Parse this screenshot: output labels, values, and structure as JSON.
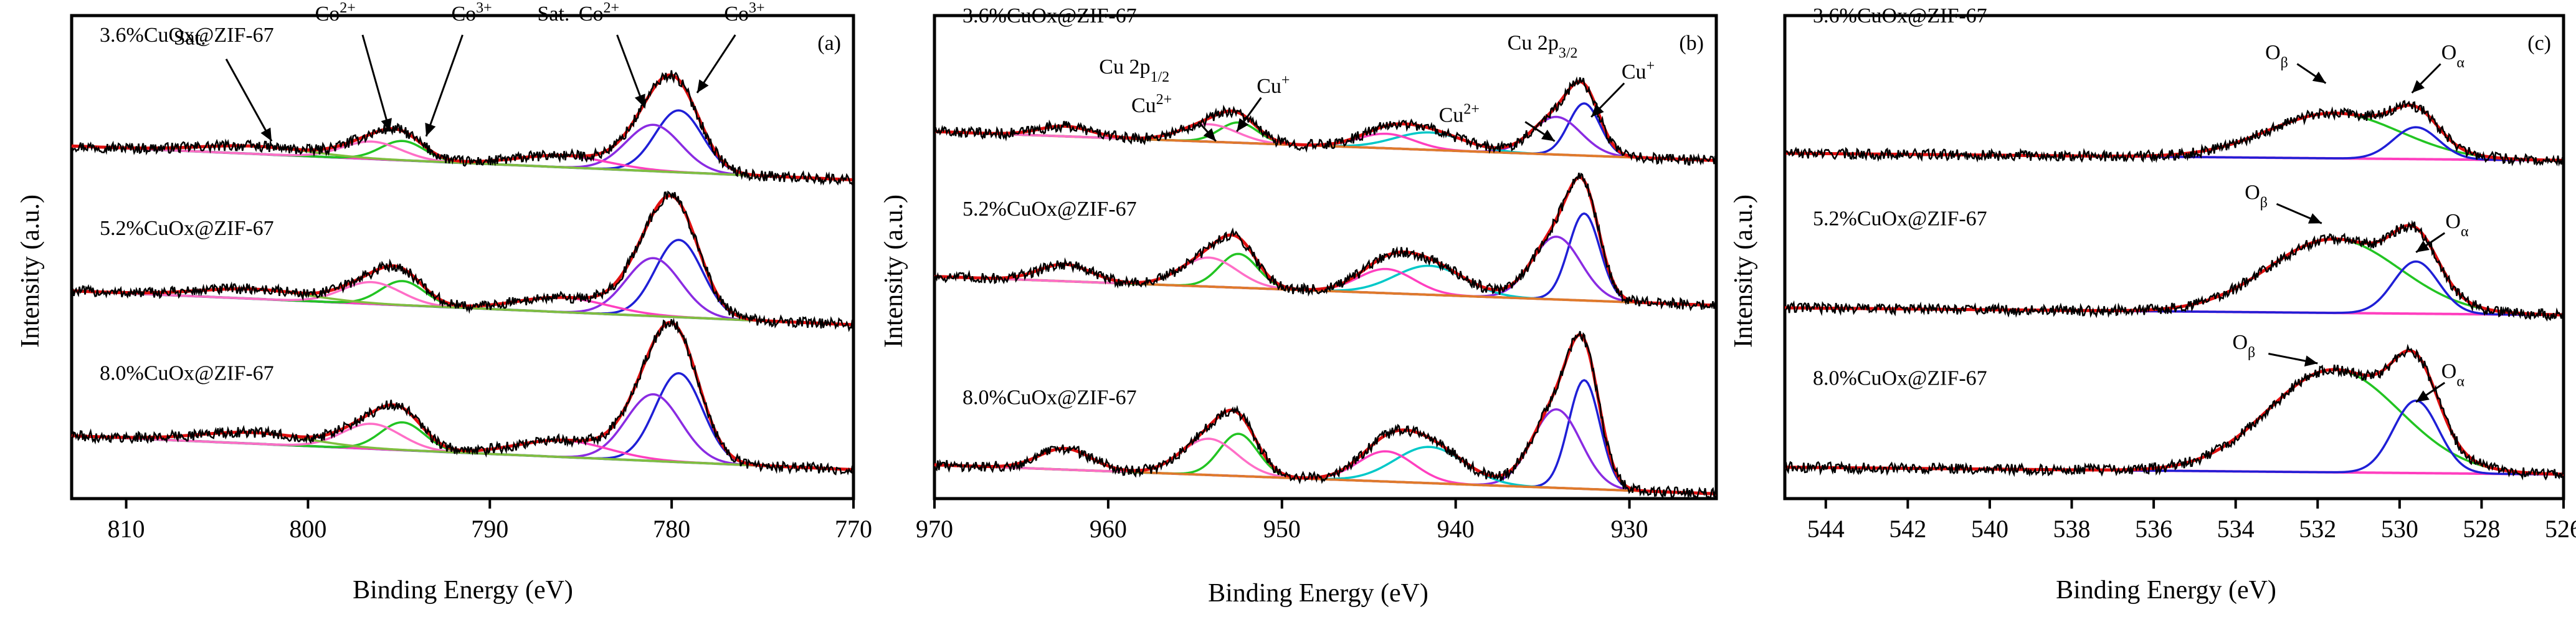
{
  "figure": {
    "description_panels": [
      "a",
      "b",
      "c"
    ]
  },
  "chart_data": [
    {
      "type": "line",
      "panel_label": "(a)",
      "title": "",
      "xlabel": "Binding Energy (eV)",
      "ylabel": "Intensity (a.u.)",
      "xlim": [
        813,
        770
      ],
      "ylim": [
        0,
        1
      ],
      "xticks": [
        "810",
        "800",
        "790",
        "780",
        "770"
      ],
      "xtick_values": [
        810,
        800,
        790,
        780,
        770
      ],
      "samples": [
        {
          "name": "3.6%CuOx@ZIF-67",
          "offset": 0.66,
          "scale": 0.8
        },
        {
          "name": "5.2%CuOx@ZIF-67",
          "offset": 0.36,
          "scale": 1.0
        },
        {
          "name": "8.0%CuOx@ZIF-67",
          "offset": 0.06,
          "scale": 1.15
        }
      ],
      "peaks": [
        {
          "center": 779.6,
          "width": 1.3,
          "height": 0.16,
          "color": "#1f1fd6",
          "label": "Co3+"
        },
        {
          "center": 781.0,
          "width": 1.5,
          "height": 0.12,
          "color": "#8a2be2",
          "label": "Co2+"
        },
        {
          "center": 786.0,
          "width": 2.5,
          "height": 0.03,
          "color": "#ff3fbf",
          "label": "Sat."
        },
        {
          "center": 794.8,
          "width": 1.2,
          "height": 0.05,
          "color": "#22c422",
          "label": "Co3+"
        },
        {
          "center": 796.5,
          "width": 1.6,
          "height": 0.045,
          "color": "#ff6ec7",
          "label": "Co2+"
        },
        {
          "center": 803.0,
          "width": 3.0,
          "height": 0.02,
          "color": "#7fbf3f",
          "label": "Sat."
        }
      ],
      "background": {
        "color": "#2f8f8f",
        "left_level": 0.07,
        "right_level": 0.0
      },
      "annotations": [
        {
          "text": "Sat.",
          "sup": "",
          "sub": "",
          "x": 806.5,
          "y": 0.94
        },
        {
          "text": "Co",
          "sup": "2+",
          "sub": "",
          "x": 798.5,
          "y": 0.99
        },
        {
          "text": "Co",
          "sup": "3+",
          "sub": "",
          "x": 791.0,
          "y": 0.99
        },
        {
          "text": "Sat.",
          "sup": "",
          "sub": "",
          "x": 786.5,
          "y": 0.99
        },
        {
          "text": "Co",
          "sup": "2+",
          "sub": "",
          "x": 784.0,
          "y": 0.99
        },
        {
          "text": "Co",
          "sup": "3+",
          "sub": "",
          "x": 776.0,
          "y": 0.99
        }
      ],
      "arrows": [
        {
          "from": [
            804.5,
            0.91
          ],
          "to": [
            802.0,
            0.74
          ]
        },
        {
          "from": [
            797.0,
            0.96
          ],
          "to": [
            795.5,
            0.76
          ]
        },
        {
          "from": [
            791.5,
            0.96
          ],
          "to": [
            793.5,
            0.75
          ]
        },
        {
          "from": [
            783.0,
            0.96
          ],
          "to": [
            781.5,
            0.81
          ]
        },
        {
          "from": [
            776.5,
            0.96
          ],
          "to": [
            778.6,
            0.84
          ]
        }
      ]
    },
    {
      "type": "line",
      "panel_label": "(b)",
      "title": "",
      "xlabel": "Binding Energy (eV)",
      "ylabel": "Intensity (a.u.)",
      "xlim": [
        970,
        925
      ],
      "ylim": [
        0,
        1
      ],
      "xticks": [
        "970",
        "960",
        "950",
        "940",
        "930"
      ],
      "xtick_values": [
        970,
        960,
        950,
        940,
        930
      ],
      "samples": [
        {
          "name": "3.6%CuOx@ZIF-67",
          "offset": 0.7,
          "scale": 0.6
        },
        {
          "name": "5.2%CuOx@ZIF-67",
          "offset": 0.4,
          "scale": 1.0
        },
        {
          "name": "8.0%CuOx@ZIF-67",
          "offset": 0.01,
          "scale": 1.25
        }
      ],
      "peaks": [
        {
          "center": 932.6,
          "width": 0.9,
          "height": 0.18,
          "color": "#1f1fd6",
          "label": "Cu+"
        },
        {
          "center": 934.2,
          "width": 1.4,
          "height": 0.13,
          "color": "#8a2be2",
          "label": "Cu2+"
        },
        {
          "center": 941.5,
          "width": 2.0,
          "height": 0.06,
          "color": "#00c8c8",
          "label": "Sat."
        },
        {
          "center": 944.0,
          "width": 1.6,
          "height": 0.05,
          "color": "#ff3fbf",
          "label": "Sat."
        },
        {
          "center": 952.5,
          "width": 1.1,
          "height": 0.07,
          "color": "#22c422",
          "label": "Cu+"
        },
        {
          "center": 954.2,
          "width": 1.6,
          "height": 0.06,
          "color": "#ff6ec7",
          "label": "Cu2+"
        },
        {
          "center": 962.5,
          "width": 1.5,
          "height": 0.035,
          "color": "#e07a2a",
          "label": "Sat."
        }
      ],
      "background": {
        "color": "#ff7f2a",
        "left_level": 0.06,
        "right_level": 0.0
      },
      "annotations": [
        {
          "text": "Cu 2p",
          "sup": "",
          "sub": "1/2",
          "x": 958.5,
          "y": 0.88
        },
        {
          "text": "Cu",
          "sup": "2+",
          "sub": "",
          "x": 957.5,
          "y": 0.8
        },
        {
          "text": "Cu",
          "sup": "+",
          "sub": "",
          "x": 950.5,
          "y": 0.84
        },
        {
          "text": "Cu 2p",
          "sup": "",
          "sub": "3/2",
          "x": 935.0,
          "y": 0.93
        },
        {
          "text": "Cu",
          "sup": "+",
          "sub": "",
          "x": 929.5,
          "y": 0.87
        },
        {
          "text": "Cu",
          "sup": "2+",
          "sub": "",
          "x": 939.8,
          "y": 0.78
        }
      ],
      "arrows": [
        {
          "from": [
            954.8,
            0.78
          ],
          "to": [
            953.8,
            0.74
          ]
        },
        {
          "from": [
            951.2,
            0.83
          ],
          "to": [
            952.6,
            0.76
          ]
        },
        {
          "from": [
            936.0,
            0.78
          ],
          "to": [
            934.3,
            0.74
          ]
        },
        {
          "from": [
            930.3,
            0.86
          ],
          "to": [
            932.2,
            0.79
          ]
        }
      ]
    },
    {
      "type": "line",
      "panel_label": "(c)",
      "title": "",
      "xlabel": "Binding Energy (eV)",
      "ylabel": "Intensity (a.u.)",
      "xlim": [
        545,
        526
      ],
      "ylim": [
        0,
        1
      ],
      "xticks": [
        "544",
        "542",
        "540",
        "538",
        "536",
        "534",
        "532",
        "530",
        "528",
        "526"
      ],
      "xtick_values": [
        544,
        542,
        540,
        538,
        536,
        534,
        532,
        530,
        528,
        526
      ],
      "samples": [
        {
          "name": "3.6%CuOx@ZIF-67",
          "offset": 0.7,
          "scale": 0.55
        },
        {
          "name": "5.2%CuOx@ZIF-67",
          "offset": 0.38,
          "scale": 0.9
        },
        {
          "name": "8.0%CuOx@ZIF-67",
          "offset": 0.05,
          "scale": 1.25
        }
      ],
      "peaks": [
        {
          "center": 531.6,
          "width": 1.6,
          "height": 0.17,
          "color": "#22c422",
          "label": "Oβ"
        },
        {
          "center": 529.6,
          "width": 0.55,
          "height": 0.12,
          "color": "#1f1fd6",
          "label": "Oα"
        }
      ],
      "background": {
        "color": "#ff3fbf",
        "left_level": 0.015,
        "right_level": 0.0
      },
      "annotations": [
        {
          "text": "O",
          "sup": "",
          "sub": "β",
          "x": 533.0,
          "y": 0.91
        },
        {
          "text": "O",
          "sup": "",
          "sub": "α",
          "x": 528.7,
          "y": 0.91
        },
        {
          "text": "O",
          "sup": "",
          "sub": "β",
          "x": 533.5,
          "y": 0.62
        },
        {
          "text": "O",
          "sup": "",
          "sub": "α",
          "x": 528.6,
          "y": 0.56
        },
        {
          "text": "O",
          "sup": "",
          "sub": "β",
          "x": 533.8,
          "y": 0.31
        },
        {
          "text": "O",
          "sup": "",
          "sub": "α",
          "x": 528.7,
          "y": 0.25
        }
      ],
      "arrows": [
        {
          "from": [
            532.5,
            0.9
          ],
          "to": [
            531.8,
            0.86
          ]
        },
        {
          "from": [
            529.0,
            0.9
          ],
          "to": [
            529.7,
            0.84
          ]
        },
        {
          "from": [
            533.0,
            0.61
          ],
          "to": [
            531.9,
            0.57
          ]
        },
        {
          "from": [
            528.9,
            0.55
          ],
          "to": [
            529.6,
            0.51
          ]
        },
        {
          "from": [
            533.2,
            0.3
          ],
          "to": [
            532.0,
            0.28
          ]
        },
        {
          "from": [
            528.9,
            0.24
          ],
          "to": [
            529.6,
            0.2
          ]
        }
      ]
    }
  ]
}
